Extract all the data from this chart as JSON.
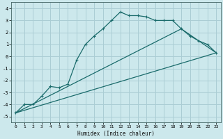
{
  "xlabel": "Humidex (Indice chaleur)",
  "ylabel": "",
  "bg_color": "#cce8ec",
  "grid_color": "#aacdd4",
  "line_color": "#1a6b6b",
  "xlim": [
    -0.5,
    23.5
  ],
  "ylim": [
    -5.5,
    4.5
  ],
  "xticks": [
    0,
    1,
    2,
    3,
    4,
    5,
    6,
    7,
    8,
    9,
    10,
    11,
    12,
    13,
    14,
    15,
    16,
    17,
    18,
    19,
    20,
    21,
    22,
    23
  ],
  "yticks": [
    -5,
    -4,
    -3,
    -2,
    -1,
    0,
    1,
    2,
    3,
    4
  ],
  "series1_x": [
    0,
    1,
    2,
    3,
    4,
    5,
    6,
    7,
    8,
    9,
    10,
    11,
    12,
    13,
    14,
    15,
    16,
    17,
    18,
    19,
    20,
    21,
    22,
    23
  ],
  "series1_y": [
    -4.7,
    -4.0,
    -4.0,
    -3.3,
    -2.5,
    -2.6,
    -2.3,
    -0.3,
    1.0,
    1.7,
    2.3,
    3.0,
    3.7,
    3.4,
    3.4,
    3.3,
    3.0,
    3.0,
    3.0,
    2.3,
    1.7,
    1.3,
    1.0,
    0.3
  ],
  "series2_x": [
    0,
    23
  ],
  "series2_y": [
    -4.7,
    0.3
  ],
  "series3_x": [
    0,
    19,
    23
  ],
  "series3_y": [
    -4.7,
    2.3,
    0.3
  ]
}
